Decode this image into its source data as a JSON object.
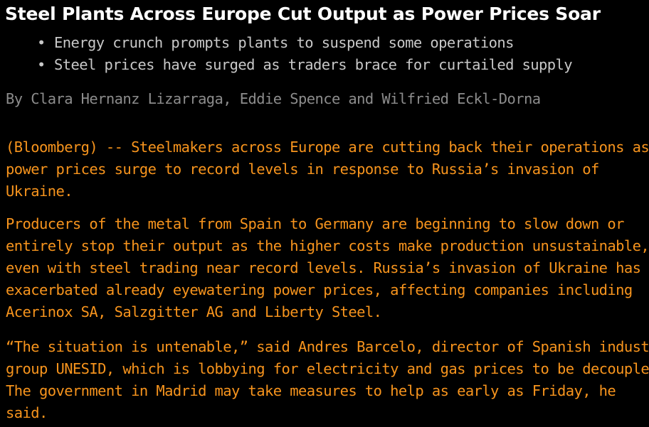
{
  "headline": "Steel Plants Across Europe Cut Output as Power Prices Soar",
  "bullets": [
    "Energy crunch prompts plants to suspend some operations",
    "Steel prices have surged as traders brace for curtailed supply"
  ],
  "byline": "By Clara Hernanz Lizarraga, Eddie Spence and Wilfried Eckl-Dorna",
  "paragraphs": [
    {
      "lines": [
        "(Bloomberg) -- Steelmakers across Europe are cutting back their operations as",
        "power prices surge to record levels in response to Russia’s invasion of",
        "Ukraine."
      ]
    },
    {
      "lines": [
        "Producers of the metal from Spain to Germany are beginning to slow down or",
        "entirely stop their output as the higher costs make production unsustainable,",
        "even with steel trading near record levels. Russia’s invasion of Ukraine has",
        "exacerbated already eyewatering power prices, affecting companies including",
        "Acerinox SA, Salzgitter AG and Liberty Steel."
      ]
    },
    {
      "lines": [
        "“The situation is untenable,” said Andres Barcelo, director of Spanish industry",
        "group UNESID, which is lobbying for electricity and gas prices to be decoupled.",
        "The government in Madrid may take measures to help as early as Friday, he",
        "said."
      ]
    }
  ],
  "colors": {
    "background": "#000000",
    "headline": "#ffffff",
    "bullets": "#c8c8c8",
    "byline": "#8c8c8c",
    "body": "#f7941d"
  }
}
